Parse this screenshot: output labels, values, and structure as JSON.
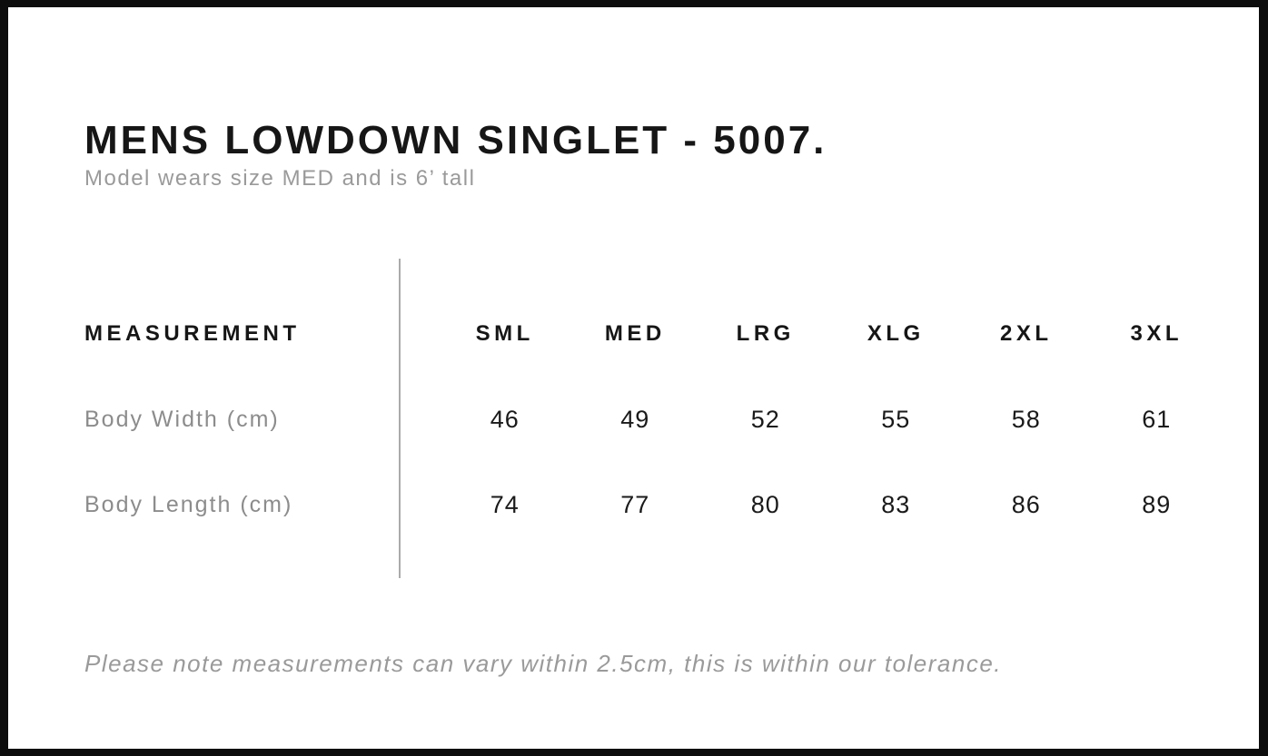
{
  "page": {
    "title": "MENS LOWDOWN SINGLET - 5007.",
    "subtitle": "Model wears size MED and is 6’ tall",
    "footnote": "Please note measurements can vary within 2.5cm, this is within our tolerance."
  },
  "size_chart": {
    "measurement_header": "MEASUREMENT",
    "columns": [
      "SML",
      "MED",
      "LRG",
      "XLG",
      "2XL",
      "3XL"
    ],
    "rows": [
      {
        "label": "Body Width (cm)",
        "values": [
          "46",
          "49",
          "52",
          "55",
          "58",
          "61"
        ]
      },
      {
        "label": "Body Length (cm)",
        "values": [
          "74",
          "77",
          "80",
          "83",
          "86",
          "89"
        ]
      }
    ]
  },
  "colors": {
    "frame_border": "#0d0d0d",
    "background": "#ffffff",
    "heading_text": "#161616",
    "muted_text": "#9a9a9a",
    "row_label_text": "#8c8c8c",
    "divider": "#ababab"
  }
}
